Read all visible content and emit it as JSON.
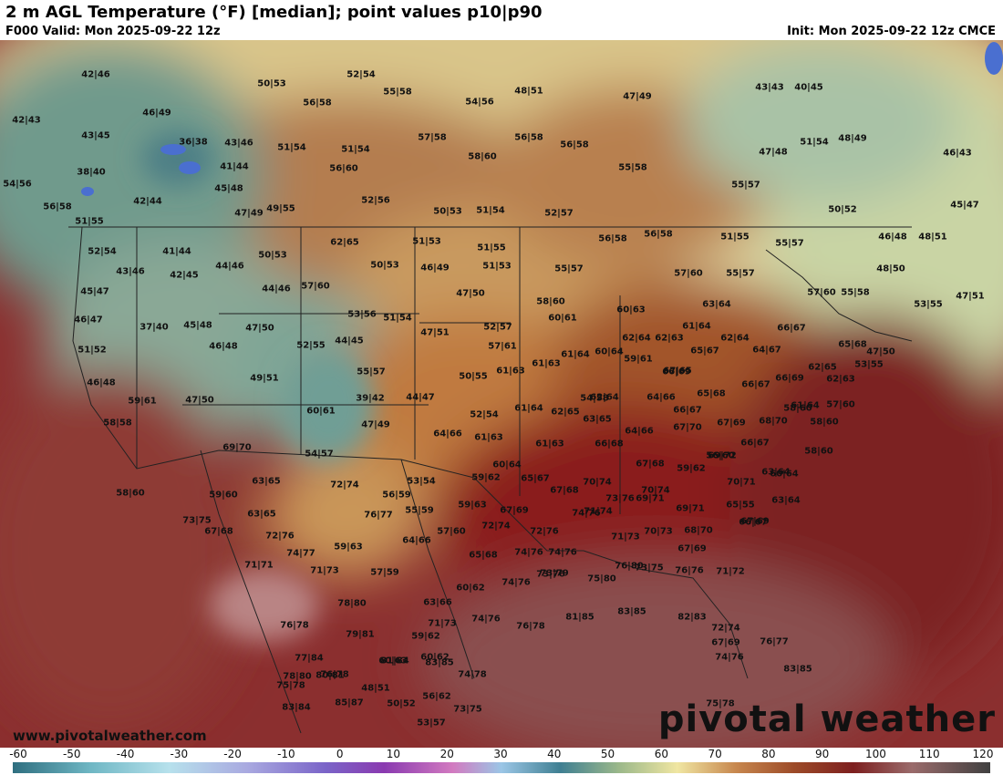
{
  "header": {
    "title": "2 m AGL Temperature (°F) [median]; point values p10|p90",
    "valid": "F000 Valid: Mon 2025-09-22 12z",
    "init": "Init: Mon 2025-09-22 12z CMCE"
  },
  "watermark": {
    "site": "www.pivotalweather.com",
    "brand": "pivotal weather"
  },
  "colorbar": {
    "ticks": [
      "-60",
      "-50",
      "-40",
      "-30",
      "-20",
      "-10",
      "0",
      "10",
      "20",
      "30",
      "40",
      "50",
      "60",
      "70",
      "80",
      "90",
      "100",
      "110",
      "120"
    ]
  },
  "points": [
    "42|46",
    "42|43",
    "46|49",
    "43|45",
    "36|38",
    "43|46",
    "38|40",
    "41|44",
    "54|56",
    "45|48",
    "56|58",
    "42|44",
    "51|55",
    "47|49",
    "49|55",
    "50|53",
    "52|54",
    "55|58",
    "56|58",
    "48|51",
    "54|56",
    "47|49",
    "51|54",
    "57|58",
    "51|54",
    "56|60",
    "58|60",
    "52|56",
    "56|58",
    "56|58",
    "55|58",
    "50|53",
    "51|54",
    "52|57",
    "43|43",
    "40|45",
    "47|48",
    "51|54",
    "48|49",
    "46|43",
    "55|57",
    "50|52",
    "45|47",
    "52|54",
    "41|44",
    "50|53",
    "43|46",
    "42|45",
    "44|46",
    "62|65",
    "51|53",
    "51|55",
    "46|49",
    "50|53",
    "51|53",
    "56|58",
    "56|58",
    "51|55",
    "55|57",
    "46|48",
    "48|51",
    "45|47",
    "44|46",
    "57|60",
    "55|57",
    "57|60",
    "55|57",
    "57|60",
    "55|58",
    "48|50",
    "46|47",
    "37|40",
    "45|48",
    "47|50",
    "53|56",
    "51|54",
    "47|50",
    "58|60",
    "60|61",
    "60|63",
    "63|64",
    "53|55",
    "47|51",
    "51|52",
    "46|48",
    "52|55",
    "44|45",
    "47|51",
    "52|57",
    "57|61",
    "62|64",
    "62|63",
    "61|64",
    "62|64",
    "66|67",
    "65|68",
    "47|50",
    "49|51",
    "55|57",
    "50|55",
    "61|63",
    "61|63",
    "61|64",
    "60|64",
    "59|61",
    "67|65",
    "65|67",
    "64|67",
    "62|65",
    "53|55",
    "46|48",
    "59|61",
    "47|50",
    "39|42",
    "44|47",
    "54|58",
    "62|64",
    "64|66",
    "66|69",
    "65|68",
    "66|67",
    "66|69",
    "62|63",
    "58|60",
    "60|61",
    "47|49",
    "52|54",
    "61|64",
    "62|65",
    "63|65",
    "66|67",
    "67|70",
    "67|69",
    "68|70",
    "61|64",
    "57|60",
    "58|60",
    "58|58",
    "64|66",
    "61|63",
    "61|63",
    "64|66",
    "66|68",
    "66|67",
    "60|64",
    "58|60",
    "69|70",
    "54|57",
    "56|60",
    "60|64",
    "67|68",
    "69|72",
    "59|62",
    "63|65",
    "53|54",
    "59|62",
    "65|67",
    "67|68",
    "70|74",
    "70|74",
    "70|71",
    "63|64",
    "58|60",
    "59|60",
    "72|74",
    "56|59",
    "55|59",
    "59|63",
    "67|69",
    "73|76",
    "69|71",
    "69|71",
    "65|55",
    "63|64",
    "67|69",
    "63|65",
    "73|75",
    "76|77",
    "57|60",
    "72|74",
    "72|76",
    "74|76",
    "70|73",
    "68|70",
    "66|67",
    "67|69",
    "67|68",
    "72|76",
    "64|66",
    "71|74",
    "71|73",
    "71|71",
    "74|77",
    "59|63",
    "65|68",
    "74|76",
    "74|76",
    "71|73",
    "57|59",
    "60|62",
    "73|76",
    "75|80",
    "76|80",
    "76|76",
    "71|72",
    "73|79",
    "78|80",
    "63|66",
    "74|76",
    "73|75",
    "71|73",
    "74|76",
    "76|78",
    "81|85",
    "83|85",
    "82|83",
    "72|74",
    "76|78",
    "79|81",
    "59|62",
    "67|69",
    "76|77",
    "77|84",
    "78|80",
    "74|76",
    "81|84",
    "83|85",
    "76|78",
    "80|81",
    "74|78",
    "60|63",
    "60|62",
    "75|78",
    "48|51",
    "56|62",
    "83|85",
    "83|84",
    "85|87",
    "50|52",
    "73|75",
    "75|78",
    "53|57"
  ]
}
